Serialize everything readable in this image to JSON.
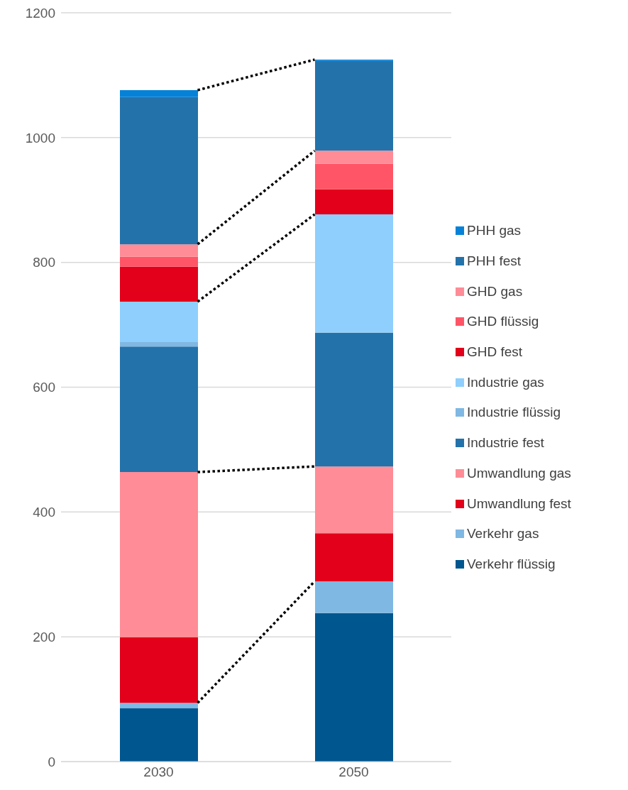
{
  "chart_data": {
    "type": "bar",
    "stacked": true,
    "categories": [
      "2030",
      "2050"
    ],
    "series": [
      {
        "name": "Verkehr flüssig",
        "color": "#00568f",
        "values": [
          86,
          238
        ]
      },
      {
        "name": "Verkehr gas",
        "color": "#7fb8e3",
        "values": [
          8,
          51
        ]
      },
      {
        "name": "Umwandlung fest",
        "color": "#e2001a",
        "values": [
          105,
          77
        ]
      },
      {
        "name": "Umwandlung gas",
        "color": "#ff8c96",
        "values": [
          265,
          107
        ]
      },
      {
        "name": "Industrie fest",
        "color": "#2372aa",
        "values": [
          201,
          214
        ]
      },
      {
        "name": "Industrie flüssig",
        "color": "#7fb8e3",
        "values": [
          8,
          1
        ]
      },
      {
        "name": "Industrie gas",
        "color": "#8ecffd",
        "values": [
          64,
          189
        ]
      },
      {
        "name": "GHD fest",
        "color": "#e2001a",
        "values": [
          56,
          40
        ]
      },
      {
        "name": "GHD flüssig",
        "color": "#ff5566",
        "values": [
          16,
          41
        ]
      },
      {
        "name": "GHD gas",
        "color": "#ff8c96",
        "values": [
          20,
          21
        ]
      },
      {
        "name": "PHH fest",
        "color": "#2372aa",
        "values": [
          236,
          144
        ]
      },
      {
        "name": "PHH gas",
        "color": "#0582d8",
        "values": [
          11,
          2
        ]
      }
    ],
    "ylim": [
      0,
      1200
    ],
    "yticks": [
      0,
      200,
      400,
      600,
      800,
      1000,
      1200
    ],
    "grid": "y",
    "legend": "right"
  }
}
